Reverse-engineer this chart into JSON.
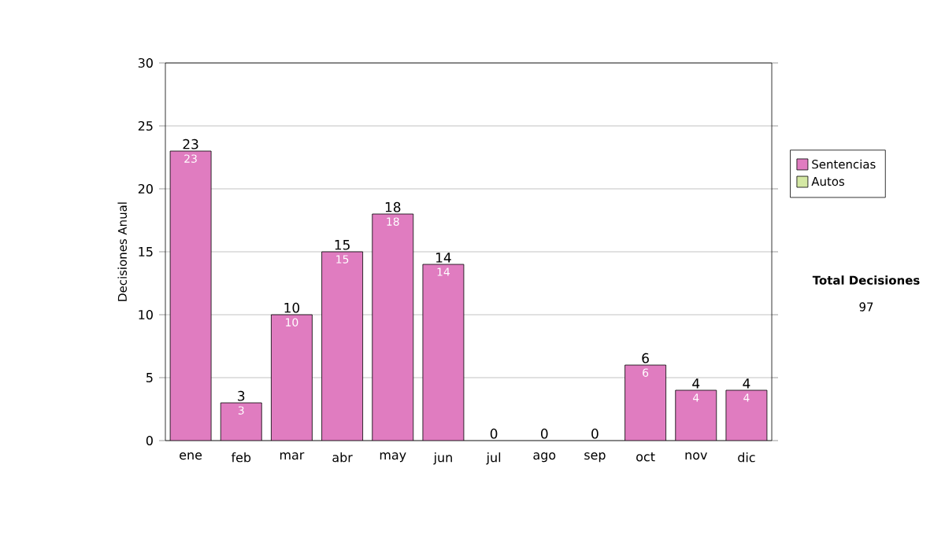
{
  "chart_data": {
    "type": "bar",
    "stacked": true,
    "ylabel": "Decisiones Anual",
    "categories": [
      "ene",
      "feb",
      "mar",
      "abr",
      "may",
      "jun",
      "jul",
      "ago",
      "sep",
      "oct",
      "nov",
      "dic"
    ],
    "series": [
      {
        "name": "Sentencias",
        "color": "#e07cc0",
        "values": [
          23,
          3,
          10,
          15,
          18,
          14,
          0,
          0,
          0,
          6,
          4,
          4
        ],
        "value_labels": [
          "23",
          "3",
          "10",
          "15",
          "18",
          "14",
          null,
          null,
          null,
          "6",
          "4",
          "4"
        ]
      },
      {
        "name": "Autos",
        "color": "#d4e8a4",
        "values": [
          0,
          0,
          0,
          0,
          0,
          0,
          0,
          0,
          0,
          0,
          0,
          0
        ]
      }
    ],
    "totals": [
      "23",
      "3",
      "10",
      "15",
      "18",
      "14",
      "0",
      "0",
      "0",
      "6",
      "4",
      "4"
    ],
    "ylim": [
      0,
      30
    ],
    "yticks": [
      0,
      5,
      10,
      15,
      20,
      25,
      30
    ],
    "grid": "y",
    "legend": "right",
    "annotations": [
      "Total Decisiones",
      "97"
    ]
  }
}
